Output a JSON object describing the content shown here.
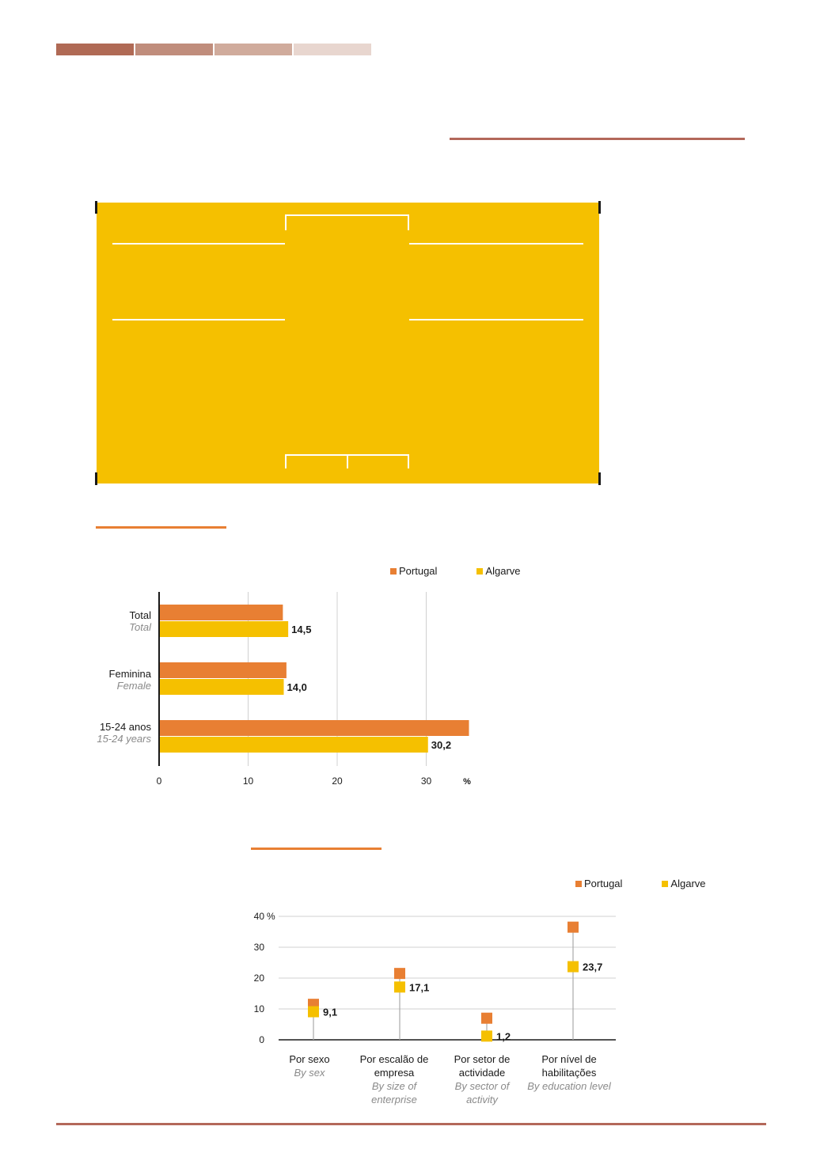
{
  "colors": {
    "strip": [
      "#b06a55",
      "#c08d7c",
      "#d0ab9c",
      "#e8d6cf"
    ],
    "accent_rule": "#b3685a",
    "orange_rule": "#e87f33",
    "panel": "#f5c000",
    "portugal": "#e87f33",
    "algarve": "#f5c000"
  },
  "chart_data": [
    {
      "type": "bar",
      "orientation": "horizontal",
      "categories": [
        {
          "label": "Total",
          "label_en": "Total"
        },
        {
          "label": "Feminina",
          "label_en": "Female"
        },
        {
          "label": "15-24 anos",
          "label_en": "15-24 years"
        }
      ],
      "series": [
        {
          "name": "Portugal",
          "values": [
            13.9,
            14.3,
            34.8
          ]
        },
        {
          "name": "Algarve",
          "values": [
            14.5,
            14.0,
            30.2
          ]
        }
      ],
      "data_labels": [
        "14,5",
        "14,0",
        "30,2"
      ],
      "xlim": [
        0,
        35
      ],
      "xticks": [
        "0",
        "10",
        "20",
        "30"
      ],
      "unit": "%",
      "grid": true,
      "legend": "top-right"
    },
    {
      "type": "scatter",
      "categories": [
        {
          "label": "Por sexo",
          "label_en": "By sex"
        },
        {
          "label": "Por escalão de empresa",
          "label_en": "By size of enterprise"
        },
        {
          "label": "Por setor de actividade",
          "label_en": "By sector of activity"
        },
        {
          "label": "Por nível de habilitações",
          "label_en": "By education level"
        }
      ],
      "series": [
        {
          "name": "Portugal",
          "values": [
            11.5,
            21.5,
            7.0,
            36.5
          ]
        },
        {
          "name": "Algarve",
          "values": [
            9.1,
            17.1,
            1.2,
            23.7
          ]
        }
      ],
      "data_labels": [
        "9,1",
        "17,1",
        "1,2",
        "23,7"
      ],
      "ylim": [
        0,
        40
      ],
      "yticks": [
        "0",
        "10",
        "20",
        "30",
        "40 %"
      ],
      "grid": true,
      "legend": "top-right"
    }
  ]
}
